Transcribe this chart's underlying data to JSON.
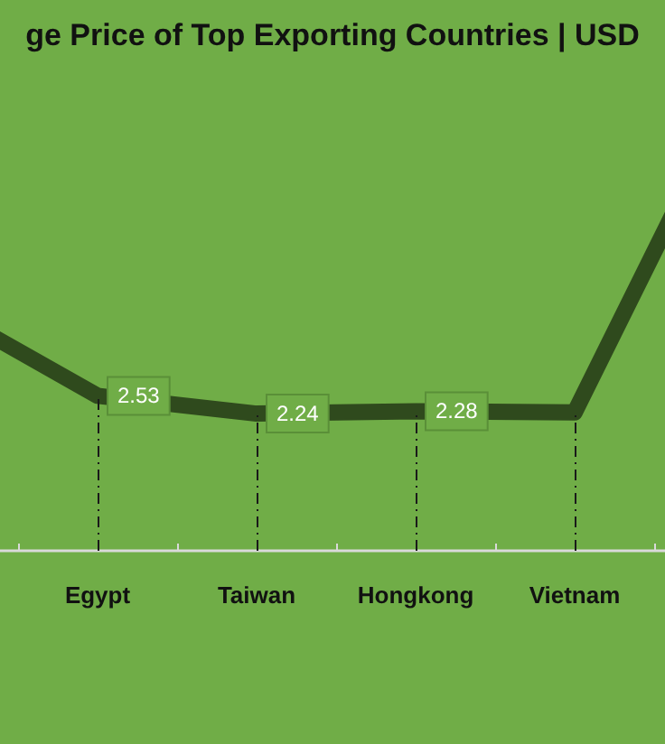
{
  "chart_data": {
    "type": "line",
    "title": "ge Price of Top Exporting Countries | USD",
    "categories": [
      null,
      "Egypt",
      "Taiwan",
      "Hongkong",
      "Vietnam",
      null
    ],
    "series": [
      {
        "color": "#2f4a1d",
        "values": [
          4.0,
          2.53,
          2.24,
          2.28,
          2.26,
          7.5
        ],
        "value_labels": [
          null,
          "2.53",
          "2.24",
          "2.28",
          null,
          null
        ]
      }
    ],
    "marker": "none"
  }
}
